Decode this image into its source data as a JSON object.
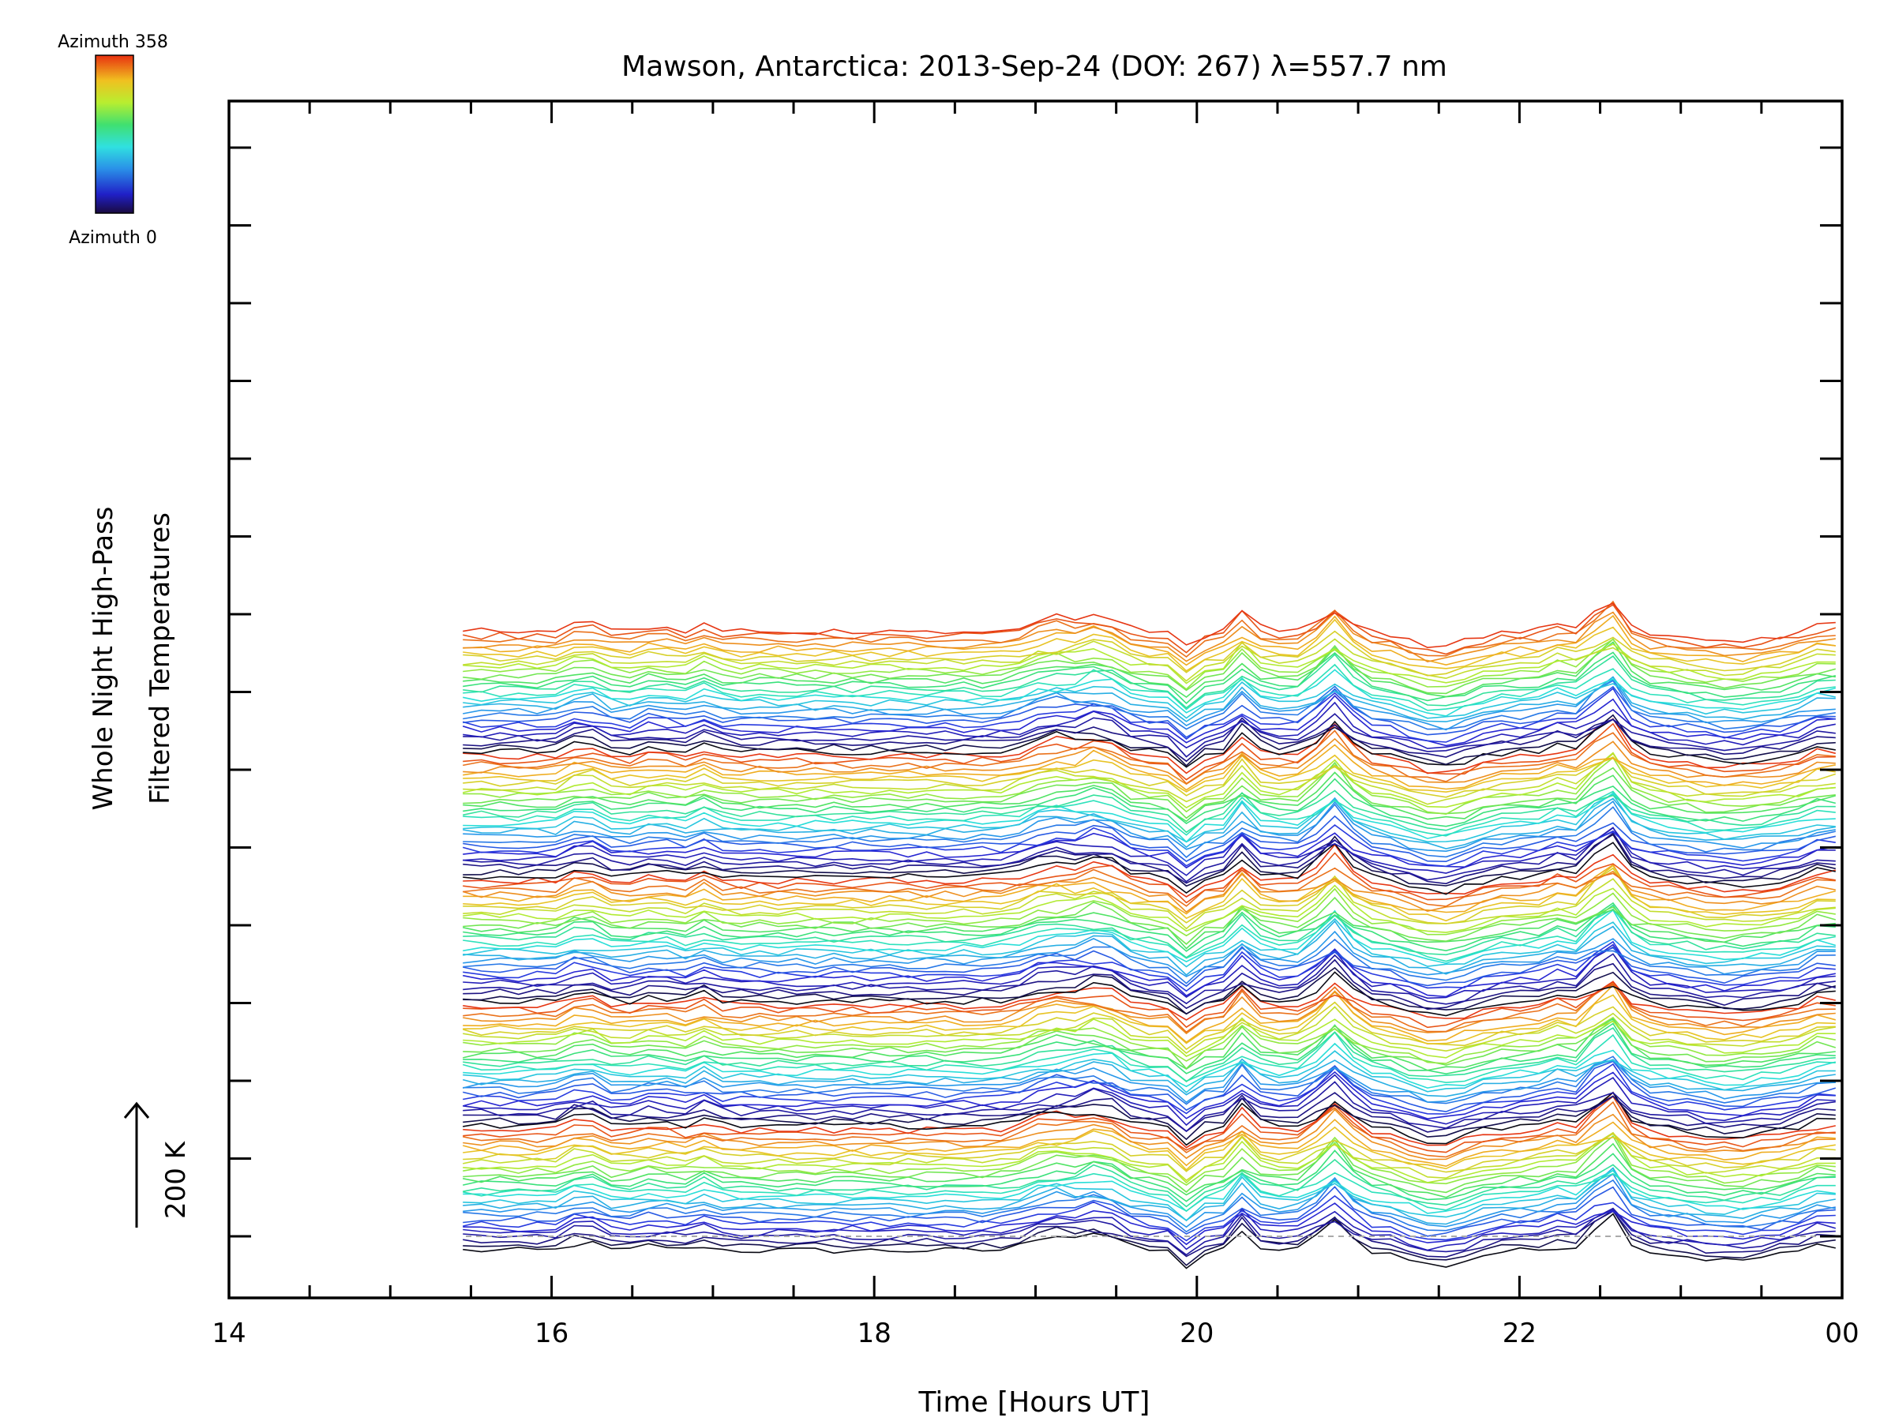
{
  "chart_data": {
    "type": "line",
    "title": "Mawson, Antarctica: 2013-Sep-24 (DOY: 267) λ=557.7 nm",
    "xlabel": "Time [Hours UT]",
    "ylabel_line1": "Whole Night High-Pass",
    "ylabel_line2": "Filtered Temperatures",
    "x_ticks": [
      "14",
      "16",
      "18",
      "20",
      "22",
      "00"
    ],
    "x_tick_hours": [
      14,
      16,
      18,
      20,
      22,
      24
    ],
    "xlim": [
      14,
      24
    ],
    "scale_bar_label": "200 K",
    "scale_bar_kelvin": 200,
    "colorbar": {
      "top_label": "Azimuth 358",
      "bottom_label": "Azimuth 0",
      "azimuth_min": 0,
      "azimuth_max": 358,
      "colormap": "rainbow"
    },
    "baseline": "dashed",
    "stack": {
      "series_count": 140,
      "start_hour": 15.45,
      "end_hour": 24.0,
      "sample_interval_hours": 0.115,
      "offset_per_series_kelvin": 14,
      "azimuth_cycle_series": 28
    },
    "signature_peaks_hours": [
      16.2,
      16.65,
      16.95,
      19.1,
      19.4,
      20.3,
      20.85,
      22.25,
      22.55,
      23.9
    ]
  },
  "colors": {
    "axis": "#000000",
    "baseline": "#aaaaaa",
    "background": "#ffffff"
  }
}
